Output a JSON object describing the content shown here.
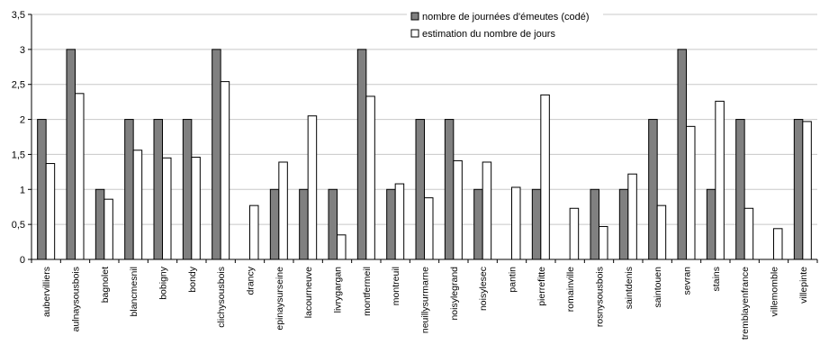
{
  "chart_data": {
    "type": "bar",
    "title": "",
    "xlabel": "",
    "ylabel": "",
    "ylim": [
      0,
      3.5
    ],
    "yticks": [
      "0",
      "0,5",
      "1",
      "1,5",
      "2",
      "2,5",
      "3",
      "3,5"
    ],
    "grid": true,
    "legend_position": "top-right",
    "categories": [
      "aubervilliers",
      "aulnaysousbois",
      "bagnolet",
      "blancmesnil",
      "bobigny",
      "bondy",
      "clichysousbois",
      "drancy",
      "epinaysurseine",
      "lacourneuve",
      "livrygargan",
      "montfermeil",
      "montreuil",
      "neuillysurmarne",
      "noisylegrand",
      "noisylesec",
      "pantin",
      "pierrefitte",
      "romainville",
      "rosnysousbois",
      "saintdenis",
      "saintouen",
      "sevran",
      "stains",
      "tremblayenfrance",
      "villemomble",
      "villepinte"
    ],
    "series": [
      {
        "name": "nombre de journées d'émeutes (codé)",
        "color": "#808080",
        "values": [
          2,
          3,
          1,
          2,
          2,
          2,
          3,
          0,
          1,
          1,
          1,
          3,
          1,
          2,
          2,
          1,
          0,
          1,
          0,
          1,
          1,
          2,
          3,
          1,
          2,
          0,
          2
        ]
      },
      {
        "name": "estimation du nombre de jours",
        "color": "#ffffff",
        "values": [
          1.37,
          2.37,
          0.86,
          1.56,
          1.45,
          1.46,
          2.54,
          0.77,
          1.39,
          2.05,
          0.35,
          2.33,
          1.08,
          0.88,
          1.41,
          1.39,
          1.03,
          2.35,
          0.73,
          0.47,
          1.22,
          0.77,
          1.9,
          2.26,
          0.73,
          0.44,
          1.97
        ]
      }
    ]
  }
}
